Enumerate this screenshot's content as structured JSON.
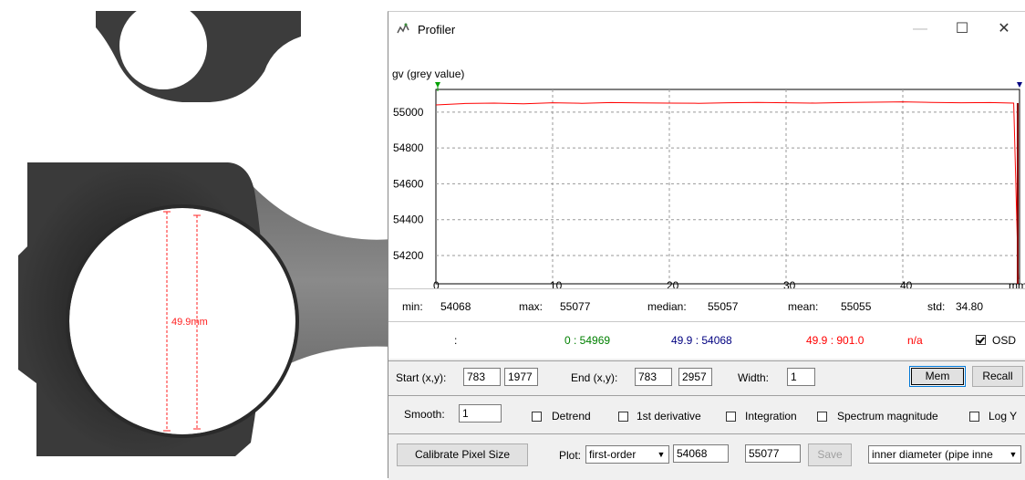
{
  "window": {
    "title": "Profiler",
    "icon": "profiler-icon"
  },
  "image": {
    "measurement_label": "49.9mm"
  },
  "chart_data": {
    "type": "line",
    "title": "",
    "ylabel": "gv (grey value)",
    "xlabel": "mm",
    "xlim": [
      0,
      50
    ],
    "ylim": [
      54068,
      55077
    ],
    "xticks": [
      "0",
      "10",
      "20",
      "30",
      "40"
    ],
    "yticks": [
      "55000",
      "54800",
      "54600",
      "54400",
      "54200"
    ],
    "grid": true,
    "series": [
      {
        "color": "#ff0000",
        "x": [
          0,
          2.5,
          5,
          7.5,
          10,
          12.5,
          15,
          17.5,
          20,
          22.5,
          25,
          27.5,
          30,
          32.5,
          35,
          37.5,
          40,
          42.5,
          45,
          47.5,
          49.5,
          49.9
        ],
        "y": [
          55040,
          55048,
          55050,
          55046,
          55052,
          55049,
          55053,
          55051,
          55050,
          55049,
          55052,
          55054,
          55052,
          55050,
          55053,
          55055,
          55057,
          55054,
          55052,
          55053,
          55050,
          54068
        ]
      }
    ]
  },
  "stats": {
    "min_label": "min:",
    "min": "54068",
    "max_label": "max:",
    "max": "55077",
    "median_label": "median:",
    "median": "55057",
    "mean_label": "mean:",
    "mean": "55055",
    "std_label": "std:",
    "std": "34.80"
  },
  "cursor": {
    "blank": ":",
    "green": "0 : 54969",
    "blue": "49.9 : 54068",
    "red": "49.9 : 901.0",
    "na": "n/a",
    "osd_label": "OSD",
    "osd_checked": true,
    "green_color": "#008000",
    "blue_color": "#000080",
    "red_color": "#ff0000"
  },
  "coords": {
    "start_label": "Start (x,y):",
    "start_x": "783",
    "start_y": "1977",
    "end_label": "End (x,y):",
    "end_x": "783",
    "end_y": "2957",
    "width_label": "Width:",
    "width": "1",
    "mem_label": "Mem",
    "recall_label": "Recall"
  },
  "options": {
    "smooth_label": "Smooth:",
    "smooth": "1",
    "detrend": "Detrend",
    "first_derivative": "1st derivative",
    "integration": "Integration",
    "spectrum": "Spectrum magnitude",
    "logy": "Log Y"
  },
  "bottom": {
    "calibrate_label": "Calibrate Pixel Size",
    "plot_label": "Plot:",
    "plot_value": "first-order",
    "range_min": "54068",
    "range_max": "55077",
    "save_label": "Save",
    "preset_value": "inner diameter (pipe inne"
  }
}
